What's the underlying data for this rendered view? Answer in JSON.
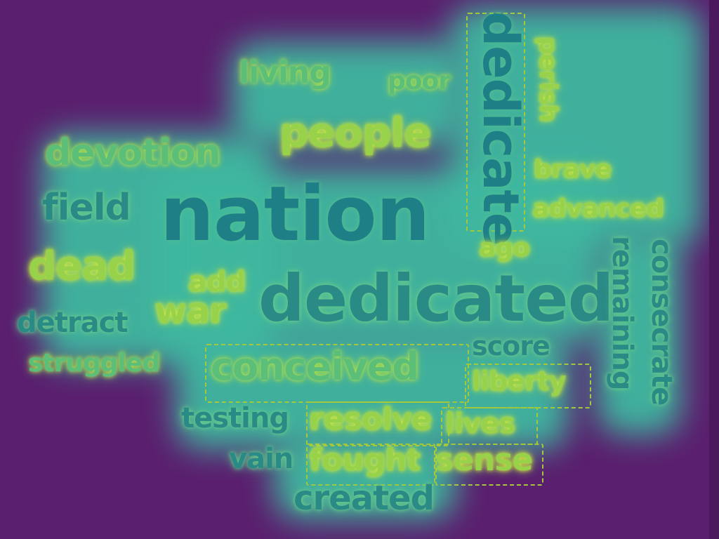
{
  "words": [
    {
      "text": "nation",
      "cls": "c4"
    },
    {
      "text": "dedicated",
      "cls": "c1"
    },
    {
      "text": "dedicate",
      "cls": "c4"
    },
    {
      "text": "people",
      "cls": "c3"
    },
    {
      "text": "devotion",
      "cls": "c2"
    },
    {
      "text": "living",
      "cls": "c2"
    },
    {
      "text": "poor",
      "cls": "c2"
    },
    {
      "text": "perish",
      "cls": "c3"
    },
    {
      "text": "brave",
      "cls": "c3"
    },
    {
      "text": "advanced",
      "cls": "c3"
    },
    {
      "text": "field",
      "cls": "c1"
    },
    {
      "text": "dead",
      "cls": "c3"
    },
    {
      "text": "add",
      "cls": "c3"
    },
    {
      "text": "war",
      "cls": "c3"
    },
    {
      "text": "detract",
      "cls": "c1"
    },
    {
      "text": "struggled",
      "cls": "c2"
    },
    {
      "text": "ago",
      "cls": "c3"
    },
    {
      "text": "remaining",
      "cls": "c1"
    },
    {
      "text": "consecrate",
      "cls": "c1"
    },
    {
      "text": "score",
      "cls": "c1"
    },
    {
      "text": "conceived",
      "cls": "c2"
    },
    {
      "text": "liberty",
      "cls": "c3"
    },
    {
      "text": "testing",
      "cls": "c1"
    },
    {
      "text": "resolve",
      "cls": "c3"
    },
    {
      "text": "lives",
      "cls": "c3"
    },
    {
      "text": "vain",
      "cls": "c1"
    },
    {
      "text": "fought",
      "cls": "c3"
    },
    {
      "text": "sense",
      "cls": "c3"
    },
    {
      "text": "created",
      "cls": "c1"
    }
  ]
}
